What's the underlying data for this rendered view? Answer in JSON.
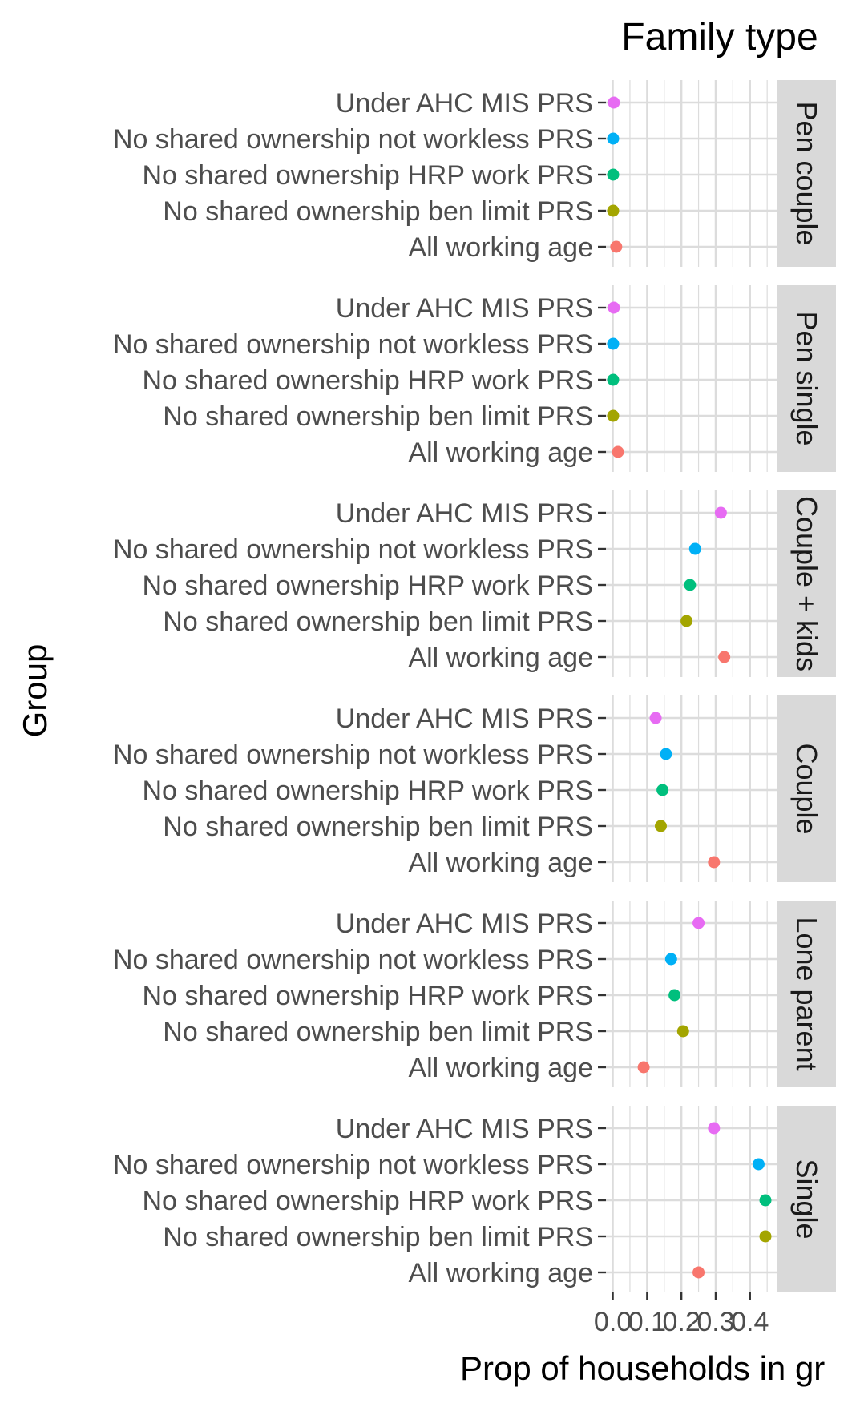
{
  "chart_data": {
    "type": "scatter",
    "title": "Family type",
    "xlabel": "Prop of households in gr",
    "ylabel": "Group",
    "xlim": [
      -0.02,
      0.48
    ],
    "x_ticks": [
      0.0,
      0.1,
      0.2,
      0.3,
      0.4
    ],
    "x_tick_labels": [
      "0.0",
      "0.1",
      "0.2",
      "0.3",
      "0.4"
    ],
    "grid": true,
    "categories": [
      "Under AHC MIS PRS",
      "No shared ownership not workless PRS",
      "No shared ownership HRP work PRS",
      "No shared ownership ben limit PRS",
      "All working age"
    ],
    "category_colors": [
      "#E76BF3",
      "#00B0F6",
      "#00BF7D",
      "#A3A500",
      "#F8766D"
    ],
    "strip_color": "#D9D9D9",
    "grid_color": "#DCDCDC",
    "facets": [
      {
        "name": "Pen couple",
        "values": [
          0.003,
          0.001,
          0.001,
          0.001,
          0.01
        ]
      },
      {
        "name": "Pen single",
        "values": [
          0.003,
          0.001,
          0.001,
          0.001,
          0.015
        ]
      },
      {
        "name": "Couple + kids",
        "values": [
          0.315,
          0.24,
          0.225,
          0.215,
          0.325
        ]
      },
      {
        "name": "Couple",
        "values": [
          0.125,
          0.155,
          0.145,
          0.14,
          0.295
        ]
      },
      {
        "name": "Lone parent",
        "values": [
          0.25,
          0.17,
          0.18,
          0.205,
          0.09
        ]
      },
      {
        "name": "Single",
        "values": [
          0.295,
          0.425,
          0.445,
          0.445,
          0.25
        ]
      }
    ]
  }
}
